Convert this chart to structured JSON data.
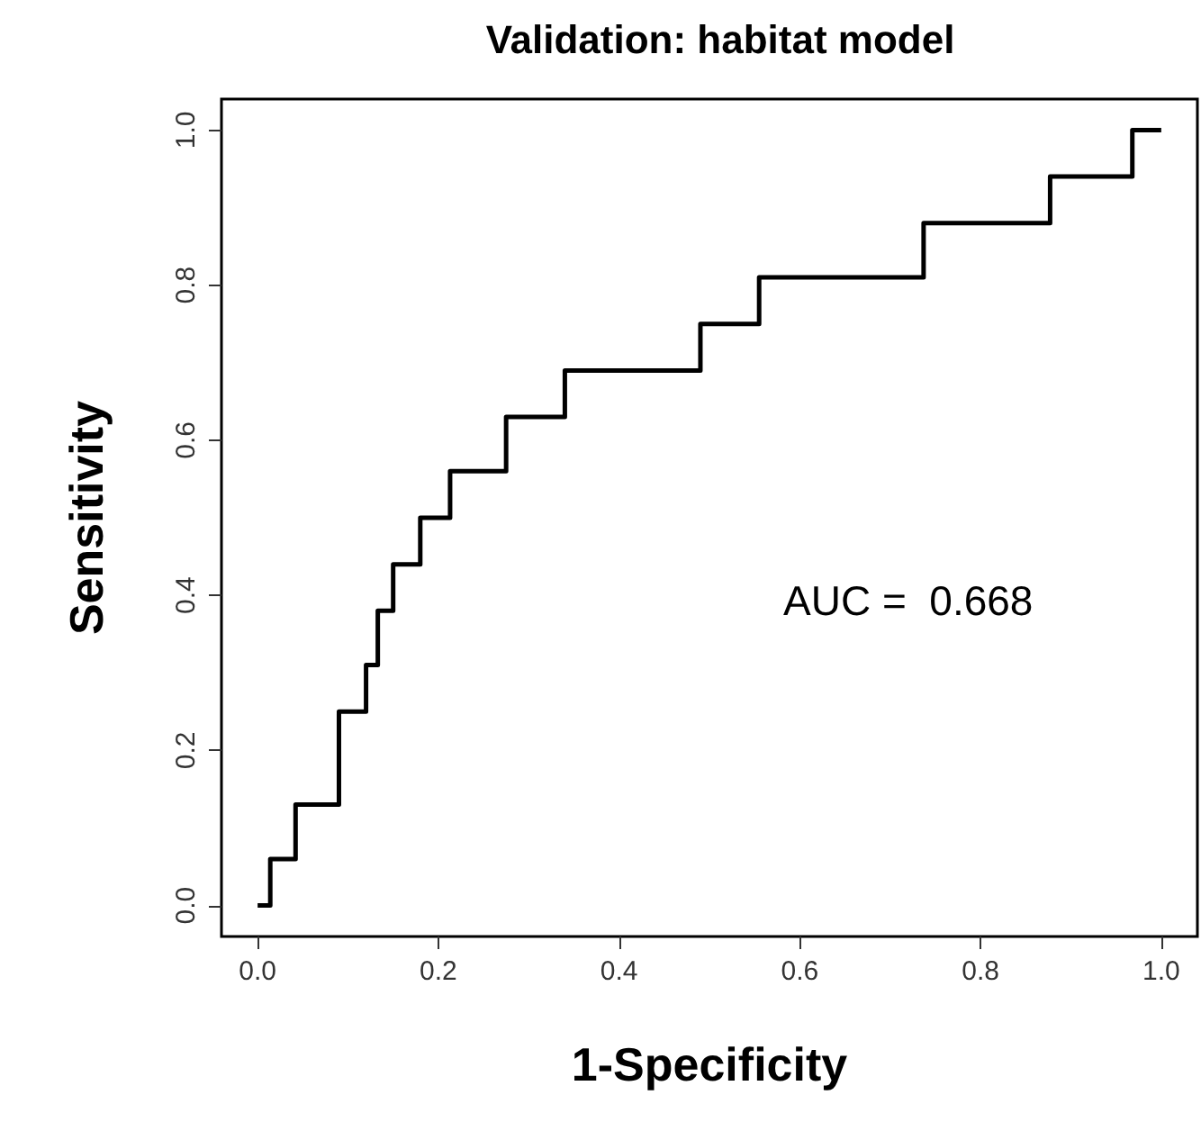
{
  "chart_data": {
    "type": "step",
    "title": "Validation: habitat model",
    "xlabel": "1-Specificity",
    "ylabel": "Sensitivity",
    "x": [
      0.0,
      0.014,
      0.042,
      0.09,
      0.12,
      0.133,
      0.15,
      0.18,
      0.213,
      0.275,
      0.34,
      0.49,
      0.555,
      0.737,
      0.877,
      0.968,
      1.0
    ],
    "series": [
      {
        "color": "#000000",
        "values": [
          0,
          0.06,
          0.13,
          0.25,
          0.31,
          0.38,
          0.44,
          0.5,
          0.56,
          0.63,
          0.69,
          0.75,
          0.81,
          0.88,
          0.94,
          1.0,
          1.0
        ]
      }
    ],
    "xlim": [
      -0.04,
      1.04
    ],
    "ylim": [
      -0.04,
      1.04
    ],
    "xticks": [
      {
        "value": 0,
        "label": "0.0"
      },
      {
        "value": 0.2,
        "label": "0.2"
      },
      {
        "value": 0.4,
        "label": "0.4"
      },
      {
        "value": 0.6,
        "label": "0.6"
      },
      {
        "value": 0.8,
        "label": "0.8"
      },
      {
        "value": 1,
        "label": "1.0"
      }
    ],
    "yticks": [
      {
        "value": 0,
        "label": "0.0"
      },
      {
        "value": 0.2,
        "label": "0.2"
      },
      {
        "value": 0.4,
        "label": "0.4"
      },
      {
        "value": 0.6,
        "label": "0.6"
      },
      {
        "value": 0.8,
        "label": "0.8"
      },
      {
        "value": 1,
        "label": "1.0"
      }
    ],
    "annotations": [
      "AUC =  0.668"
    ],
    "grid": false,
    "marker": "none",
    "line_style": "solid"
  }
}
